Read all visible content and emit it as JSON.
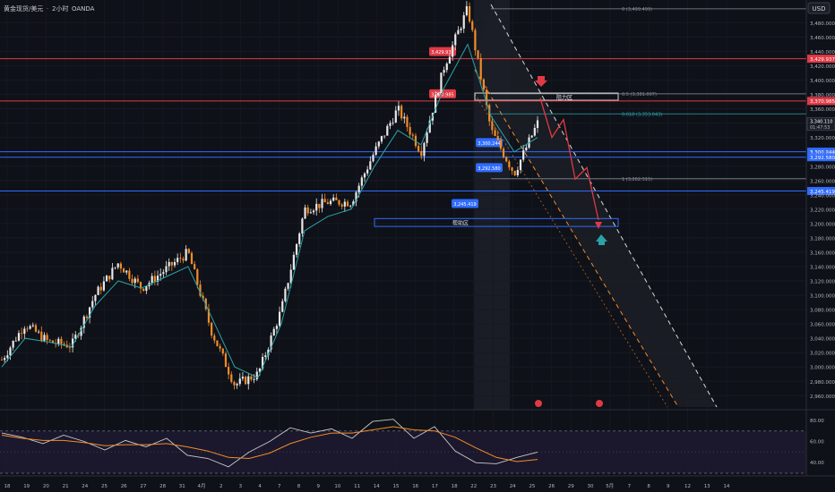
{
  "header": {
    "symbol": "黄金现货/美元",
    "interval": "2小时",
    "source": "OANDA",
    "currency": "USD"
  },
  "colors": {
    "background": "#0f1118",
    "candle_up": "#e8e8e8",
    "candle_down": "#f28c28",
    "ma": "#2aa3a8",
    "red_line": "#e03a45",
    "blue_line": "#2f6bff",
    "fib_line": "#8a8d96",
    "fib_618": "#2aa3a8",
    "channel_white": "#d9d9d9",
    "channel_orange": "#f28c28",
    "arrow_red": "#e03a45",
    "arrow_teal": "#2aa3a8",
    "rsi": "#c9c9c9",
    "rsi_ma": "#f28c28"
  },
  "chart_data": {
    "type": "candlestick",
    "ylim": [
      2940,
      3520
    ],
    "price_ticks": [
      3480,
      3460,
      3440,
      3420,
      3400,
      3380,
      3360,
      3340,
      3320,
      3300,
      3280,
      3260,
      3240,
      3220,
      3200,
      3180,
      3160,
      3140,
      3120,
      3100,
      3080,
      3060,
      3040,
      3020,
      3000,
      2980,
      2960
    ],
    "price_tick_labels": [
      "3,480.000",
      "3,460.000",
      "3,440.000",
      "3,420.000",
      "3,400.000",
      "3,380.000",
      "3,360.000",
      "3,340.000",
      "3,320.000",
      "3,300.000",
      "3,280.000",
      "3,260.000",
      "3,240.000",
      "3,220.000",
      "3,200.000",
      "3,180.000",
      "3,160.000",
      "3,140.000",
      "3,120.000",
      "3,100.000",
      "3,080.000",
      "3,060.000",
      "3,040.000",
      "3,020.000",
      "3,000.000",
      "2,980.000",
      "2,960.000"
    ],
    "date_labels": [
      "18",
      "19",
      "20",
      "21",
      "24",
      "25",
      "26",
      "27",
      "28",
      "31",
      "4月",
      "2",
      "3",
      "4",
      "7",
      "8",
      "9",
      "10",
      "11",
      "14",
      "15",
      "16",
      "17",
      "18",
      "22",
      "23",
      "24",
      "25",
      "26",
      "29",
      "30",
      "5月",
      "7",
      "8",
      "9",
      "12",
      "13",
      "14"
    ],
    "price_path": [
      [
        3010,
        2995
      ],
      [
        3060,
        3045
      ],
      [
        3035,
        3038
      ],
      [
        3030,
        3025
      ],
      [
        3100,
        3090
      ],
      [
        3145,
        3138
      ],
      [
        3110,
        3120
      ],
      [
        3135,
        3130
      ],
      [
        3160,
        3148
      ],
      [
        3050,
        3045
      ],
      [
        2975,
        2985
      ],
      [
        2990,
        2960
      ],
      [
        3080,
        3090
      ],
      [
        3220,
        3210
      ],
      [
        3230,
        3215
      ],
      [
        3230,
        3225
      ],
      [
        3300,
        3315
      ],
      [
        3360,
        3350
      ],
      [
        3300,
        3320
      ],
      [
        3420,
        3430
      ],
      [
        3500,
        3480
      ],
      [
        3330,
        3320
      ],
      [
        3270,
        3280
      ],
      [
        3340,
        3340
      ]
    ],
    "ma_values": [
      3000,
      3040,
      3035,
      3028,
      3085,
      3120,
      3110,
      3125,
      3140,
      3070,
      3000,
      2985,
      3060,
      3190,
      3210,
      3220,
      3280,
      3330,
      3310,
      3390,
      3450,
      3350,
      3300,
      3320
    ],
    "last_price": {
      "price": "3,340.110",
      "countdown": "01:47:53",
      "value": 3340.11
    },
    "horizontal_levels": [
      {
        "value": 3429.937,
        "label": "3,429.937",
        "axis_label": "3,429.937",
        "color": "red"
      },
      {
        "value": 3370.985,
        "label": "3,370.985",
        "axis_label": "3,370.985",
        "color": "red"
      },
      {
        "value": 3300.244,
        "label": "3,300.244",
        "axis_label": "3,300.244",
        "color": "blue"
      },
      {
        "value": 3292.58,
        "label": "3,292.580",
        "axis_label": "3,292.580",
        "color": "blue"
      },
      {
        "value": 3245.419,
        "label": "3,245.419",
        "axis_label": "3,245.419",
        "color": "blue"
      }
    ],
    "fib_levels": [
      {
        "ratio": 0,
        "label": "0 (3,499.499)",
        "value": 3499.499
      },
      {
        "ratio": 0.5,
        "label": "0.5 (3,381.007)",
        "value": 3381.007
      },
      {
        "ratio": 0.618,
        "label": "0.618 (3,353.043)",
        "value": 3353.043
      },
      {
        "ratio": 1,
        "label": "1 (3,262.515)",
        "value": 3262.515
      }
    ],
    "zones": [
      {
        "label": "阻力区",
        "top": 3382,
        "bottom": 3372
      },
      {
        "label": "帮助区",
        "top": 3207,
        "bottom": 3196
      }
    ],
    "projection_path": [
      3375,
      3320,
      3345,
      3262,
      3278,
      3205
    ],
    "rsi": {
      "ticks": [
        80,
        60,
        40
      ],
      "tick_labels": [
        "80.00",
        "60.00",
        "40.00"
      ],
      "upper": 70,
      "lower": 30,
      "ylim": [
        30,
        85
      ],
      "values": [
        68,
        64,
        58,
        66,
        60,
        52,
        61,
        55,
        63,
        47,
        44,
        36,
        50,
        60,
        73,
        68,
        72,
        63,
        79,
        81,
        63,
        74,
        51,
        40,
        39,
        45,
        50
      ],
      "ma_values": [
        66,
        63,
        61,
        61,
        59,
        56,
        57,
        57,
        58,
        55,
        51,
        45,
        44,
        49,
        58,
        64,
        68,
        68,
        71,
        74,
        71,
        70,
        64,
        54,
        45,
        41,
        43
      ]
    }
  }
}
